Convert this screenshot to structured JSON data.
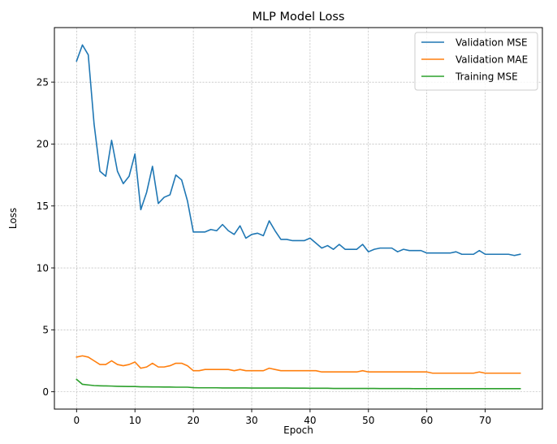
{
  "chart_data": {
    "type": "line",
    "title": "MLP Model Loss",
    "xlabel": "Epoch",
    "ylabel": "Loss",
    "xlim": [
      -3.8,
      79.8
    ],
    "ylim": [
      -1.4,
      29.4
    ],
    "xticks": [
      0,
      10,
      20,
      30,
      40,
      50,
      60,
      70
    ],
    "yticks": [
      0,
      5,
      10,
      15,
      20,
      25
    ],
    "grid": true,
    "legend_position": "top-right",
    "series": [
      {
        "name": "Validation MSE",
        "color": "#1f77b4",
        "values": [
          26.7,
          28.0,
          27.2,
          21.6,
          17.8,
          17.4,
          20.3,
          17.8,
          16.8,
          17.4,
          19.2,
          14.7,
          16.1,
          18.2,
          15.2,
          15.7,
          15.9,
          17.5,
          17.1,
          15.4,
          12.9,
          12.9,
          12.9,
          13.1,
          13.0,
          13.5,
          13.0,
          12.7,
          13.4,
          12.4,
          12.7,
          12.8,
          12.6,
          13.8,
          13.0,
          12.3,
          12.3,
          12.2,
          12.2,
          12.2,
          12.4,
          12.0,
          11.6,
          11.8,
          11.5,
          11.9,
          11.5,
          11.5,
          11.5,
          11.9,
          11.3,
          11.5,
          11.6,
          11.6,
          11.6,
          11.3,
          11.5,
          11.4,
          11.4,
          11.4,
          11.2,
          11.2,
          11.2,
          11.2,
          11.2,
          11.3,
          11.1,
          11.1,
          11.1,
          11.4,
          11.1,
          11.1,
          11.1,
          11.1,
          11.1,
          11.0,
          11.1
        ]
      },
      {
        "name": "Validation MAE",
        "color": "#ff7f0e",
        "values": [
          2.8,
          2.9,
          2.8,
          2.5,
          2.2,
          2.2,
          2.5,
          2.2,
          2.1,
          2.2,
          2.4,
          1.9,
          2.0,
          2.3,
          2.0,
          2.0,
          2.1,
          2.3,
          2.3,
          2.1,
          1.7,
          1.7,
          1.8,
          1.8,
          1.8,
          1.8,
          1.8,
          1.7,
          1.8,
          1.7,
          1.7,
          1.7,
          1.7,
          1.9,
          1.8,
          1.7,
          1.7,
          1.7,
          1.7,
          1.7,
          1.7,
          1.7,
          1.6,
          1.6,
          1.6,
          1.6,
          1.6,
          1.6,
          1.6,
          1.7,
          1.6,
          1.6,
          1.6,
          1.6,
          1.6,
          1.6,
          1.6,
          1.6,
          1.6,
          1.6,
          1.6,
          1.5,
          1.5,
          1.5,
          1.5,
          1.5,
          1.5,
          1.5,
          1.5,
          1.6,
          1.5,
          1.5,
          1.5,
          1.5,
          1.5,
          1.5,
          1.5
        ]
      },
      {
        "name": "Training MSE",
        "color": "#2ca02c",
        "values": [
          1.0,
          0.6,
          0.55,
          0.5,
          0.48,
          0.47,
          0.46,
          0.44,
          0.43,
          0.42,
          0.42,
          0.4,
          0.4,
          0.39,
          0.39,
          0.38,
          0.38,
          0.37,
          0.37,
          0.37,
          0.33,
          0.32,
          0.32,
          0.32,
          0.32,
          0.31,
          0.31,
          0.31,
          0.31,
          0.31,
          0.3,
          0.3,
          0.3,
          0.3,
          0.3,
          0.3,
          0.3,
          0.29,
          0.29,
          0.29,
          0.28,
          0.28,
          0.28,
          0.28,
          0.27,
          0.27,
          0.27,
          0.27,
          0.27,
          0.27,
          0.27,
          0.27,
          0.26,
          0.26,
          0.26,
          0.26,
          0.26,
          0.26,
          0.25,
          0.25,
          0.25,
          0.25,
          0.25,
          0.25,
          0.25,
          0.25,
          0.25,
          0.25,
          0.25,
          0.25,
          0.25,
          0.25,
          0.25,
          0.25,
          0.25,
          0.25,
          0.25
        ]
      }
    ]
  }
}
